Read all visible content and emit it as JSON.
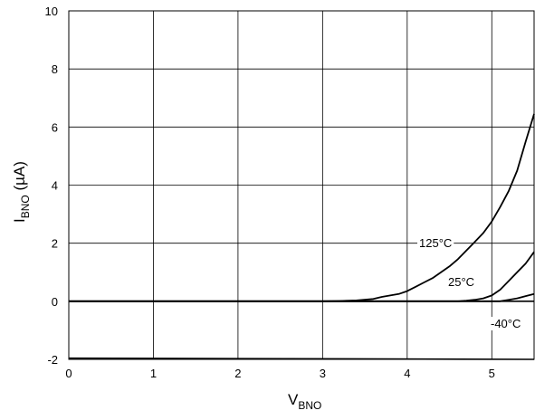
{
  "chart_data": {
    "type": "line",
    "title": "",
    "xlabel": {
      "main": "V",
      "sub": "BNO"
    },
    "ylabel": {
      "main": "I",
      "sub": "BNO",
      "unit": " (µA)"
    },
    "xlim": [
      0,
      5.5
    ],
    "ylim": [
      -2,
      10
    ],
    "xticks": [
      0,
      1,
      2,
      3,
      4,
      5
    ],
    "yticks": [
      -2,
      0,
      2,
      4,
      6,
      8,
      10
    ],
    "grid": true,
    "line_color": "#000000",
    "series": [
      {
        "name": "125°C",
        "points": [
          [
            0,
            0
          ],
          [
            3.0,
            0
          ],
          [
            3.2,
            0.01
          ],
          [
            3.4,
            0.03
          ],
          [
            3.6,
            0.08
          ],
          [
            3.7,
            0.15
          ],
          [
            3.8,
            0.2
          ],
          [
            3.9,
            0.25
          ],
          [
            4.0,
            0.35
          ],
          [
            4.1,
            0.5
          ],
          [
            4.2,
            0.65
          ],
          [
            4.3,
            0.8
          ],
          [
            4.4,
            1.0
          ],
          [
            4.5,
            1.2
          ],
          [
            4.6,
            1.45
          ],
          [
            4.7,
            1.75
          ],
          [
            4.8,
            2.05
          ],
          [
            4.9,
            2.35
          ],
          [
            5.0,
            2.75
          ],
          [
            5.1,
            3.25
          ],
          [
            5.2,
            3.8
          ],
          [
            5.3,
            4.5
          ],
          [
            5.4,
            5.5
          ],
          [
            5.5,
            6.45
          ]
        ]
      },
      {
        "name": "25°C",
        "points": [
          [
            0,
            0
          ],
          [
            4.6,
            0
          ],
          [
            4.7,
            0.02
          ],
          [
            4.8,
            0.05
          ],
          [
            4.9,
            0.1
          ],
          [
            5.0,
            0.2
          ],
          [
            5.1,
            0.4
          ],
          [
            5.2,
            0.7
          ],
          [
            5.3,
            1.0
          ],
          [
            5.4,
            1.3
          ],
          [
            5.5,
            1.7
          ]
        ]
      },
      {
        "name": "-40°C",
        "points": [
          [
            0,
            0
          ],
          [
            5.1,
            0
          ],
          [
            5.2,
            0.05
          ],
          [
            5.3,
            0.1
          ],
          [
            5.4,
            0.18
          ],
          [
            5.5,
            0.25
          ]
        ]
      }
    ],
    "baseline_series": {
      "points": [
        [
          0,
          -1.96
        ],
        [
          5.5,
          -2.0
        ]
      ]
    }
  }
}
